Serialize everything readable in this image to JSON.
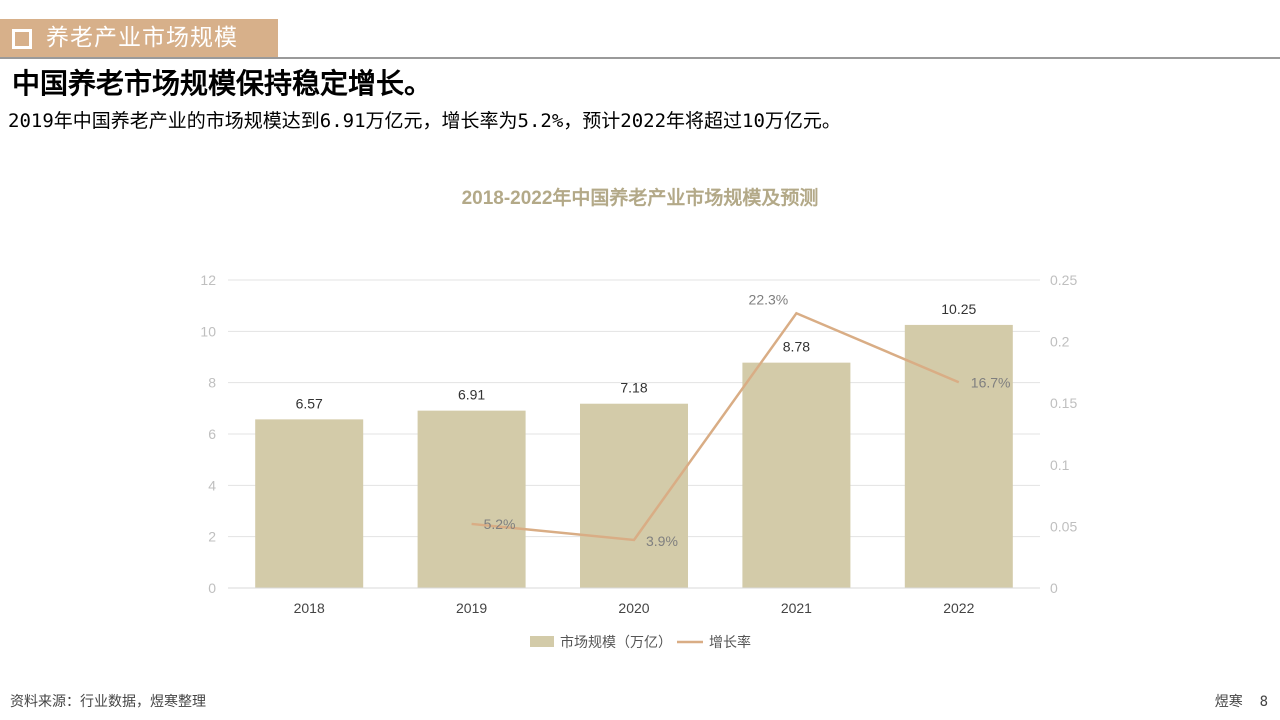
{
  "header": {
    "title": "养老产业市场规模"
  },
  "headline": "中国养老市场规模保持稳定增长。",
  "subtitle": "2019年中国养老产业的市场规模达到6.91万亿元，增长率为5.2%，预计2022年将超过10万亿元。",
  "footer": {
    "source": "资料来源：行业数据，煜寒整理",
    "brand": "煜寒",
    "page": "8"
  },
  "colors": {
    "header_bg": "#d7b08a",
    "bar": "#d3cba9",
    "line": "#d9ad85",
    "title": "#b3a988"
  },
  "chart_data": {
    "type": "bar",
    "title": "2018-2022年中国养老产业市场规模及预测",
    "categories": [
      "2018",
      "2019",
      "2020",
      "2021",
      "2022"
    ],
    "series": [
      {
        "name": "市场规模（万亿）",
        "type": "bar",
        "axis": "left",
        "values": [
          6.57,
          6.91,
          7.18,
          8.78,
          10.25
        ],
        "labels": [
          "6.57",
          "6.91",
          "7.18",
          "8.78",
          "10.25"
        ]
      },
      {
        "name": "增长率",
        "type": "line",
        "axis": "right",
        "values": [
          null,
          0.052,
          0.039,
          0.223,
          0.167
        ],
        "labels": [
          "",
          "5.2%",
          "3.9%",
          "22.3%",
          "16.7%"
        ]
      }
    ],
    "y_left": {
      "min": 0,
      "max": 12,
      "ticks": [
        "0",
        "2",
        "4",
        "6",
        "8",
        "10",
        "12"
      ]
    },
    "y_right": {
      "min": 0,
      "max": 0.25,
      "ticks": [
        "0",
        "0.05",
        "0.1",
        "0.15",
        "0.2",
        "0.25"
      ]
    },
    "grid": true,
    "legend": "bottom"
  }
}
